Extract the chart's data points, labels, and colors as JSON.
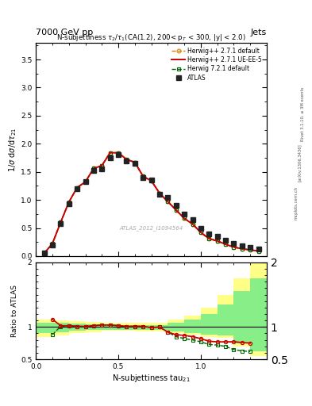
{
  "title_top": "7000 GeV pp",
  "title_right": "Jets",
  "plot_title": "N-subjettiness $\\tau_2/\\tau_1$(CA(1.2), 200< p$_{T}$ < 300, |y| < 2.0)",
  "watermark": "ATLAS_2012_I1094564",
  "ylabel_main": "1/$\\sigma$ d$\\sigma$/d$\\tau_{21}$",
  "ylabel_ratio": "Ratio to ATLAS",
  "xlabel": "N-subjettiness tau$_{21}$",
  "rivet_label": "Rivet 3.1.10, ≥ 3M events",
  "arxiv_label": "[arXiv:1306.3436]",
  "mcplots_label": "mcplots.cern.ch",
  "xlim": [
    0.0,
    1.4
  ],
  "ylim_main": [
    0.0,
    3.8
  ],
  "ylim_ratio": [
    0.5,
    2.0
  ],
  "atlas_x": [
    0.05,
    0.1,
    0.15,
    0.2,
    0.25,
    0.3,
    0.35,
    0.4,
    0.45,
    0.5,
    0.55,
    0.6,
    0.65,
    0.7,
    0.75,
    0.8,
    0.85,
    0.9,
    0.95,
    1.0,
    1.05,
    1.1,
    1.15,
    1.2,
    1.25,
    1.3,
    1.35
  ],
  "atlas_y": [
    0.05,
    0.2,
    0.58,
    0.93,
    1.2,
    1.32,
    1.52,
    1.55,
    1.75,
    1.8,
    1.7,
    1.65,
    1.4,
    1.35,
    1.1,
    1.05,
    0.9,
    0.75,
    0.65,
    0.5,
    0.4,
    0.35,
    0.28,
    0.22,
    0.18,
    0.15,
    0.12
  ],
  "hw271_x": [
    0.05,
    0.1,
    0.15,
    0.2,
    0.25,
    0.3,
    0.35,
    0.4,
    0.45,
    0.5,
    0.55,
    0.6,
    0.65,
    0.7,
    0.75,
    0.8,
    0.85,
    0.9,
    0.95,
    1.0,
    1.05,
    1.1,
    1.15,
    1.2,
    1.25,
    1.3,
    1.35
  ],
  "hw271_y": [
    0.05,
    0.22,
    0.6,
    0.96,
    1.22,
    1.32,
    1.56,
    1.61,
    1.84,
    1.84,
    1.72,
    1.67,
    1.42,
    1.34,
    1.12,
    0.97,
    0.82,
    0.67,
    0.57,
    0.42,
    0.31,
    0.27,
    0.21,
    0.16,
    0.13,
    0.11,
    0.09
  ],
  "hw271ue_x": [
    0.05,
    0.1,
    0.15,
    0.2,
    0.25,
    0.3,
    0.35,
    0.4,
    0.45,
    0.5,
    0.55,
    0.6,
    0.65,
    0.7,
    0.75,
    0.8,
    0.85,
    0.9,
    0.95,
    1.0,
    1.05,
    1.1,
    1.15,
    1.2,
    1.25,
    1.3,
    1.35
  ],
  "hw271ue_y": [
    0.05,
    0.22,
    0.6,
    0.96,
    1.22,
    1.32,
    1.56,
    1.61,
    1.84,
    1.84,
    1.72,
    1.67,
    1.42,
    1.34,
    1.12,
    0.97,
    0.82,
    0.67,
    0.57,
    0.42,
    0.31,
    0.27,
    0.21,
    0.16,
    0.13,
    0.11,
    0.09
  ],
  "hw721_x": [
    0.05,
    0.1,
    0.15,
    0.2,
    0.25,
    0.3,
    0.35,
    0.4,
    0.45,
    0.5,
    0.55,
    0.6,
    0.65,
    0.7,
    0.75,
    0.8,
    0.85,
    0.9,
    0.95,
    1.0,
    1.05,
    1.1,
    1.15,
    1.2,
    1.25,
    1.3,
    1.35
  ],
  "hw721_y": [
    0.05,
    0.22,
    0.6,
    0.96,
    1.22,
    1.32,
    1.56,
    1.61,
    1.84,
    1.84,
    1.72,
    1.67,
    1.42,
    1.34,
    1.12,
    0.97,
    0.82,
    0.67,
    0.57,
    0.42,
    0.31,
    0.27,
    0.21,
    0.16,
    0.13,
    0.11,
    0.09
  ],
  "ratio_hw271ue_x": [
    0.1,
    0.15,
    0.2,
    0.25,
    0.3,
    0.35,
    0.4,
    0.45,
    0.5,
    0.55,
    0.6,
    0.65,
    0.7,
    0.75,
    0.8,
    0.85,
    0.9,
    0.95,
    1.0,
    1.05,
    1.1,
    1.15,
    1.2,
    1.25,
    1.3
  ],
  "ratio_hw271ue_y": [
    1.12,
    1.02,
    1.02,
    1.01,
    1.01,
    1.02,
    1.03,
    1.03,
    1.02,
    1.01,
    1.01,
    1.01,
    0.99,
    1.0,
    0.92,
    0.88,
    0.87,
    0.85,
    0.82,
    0.78,
    0.77,
    0.77,
    0.77,
    0.76,
    0.75
  ],
  "ratio_hw721_x": [
    0.1,
    0.15,
    0.2,
    0.25,
    0.3,
    0.35,
    0.4,
    0.45,
    0.5,
    0.55,
    0.6,
    0.65,
    0.7,
    0.75,
    0.8,
    0.85,
    0.9,
    0.95,
    1.0,
    1.05,
    1.1,
    1.15,
    1.2,
    1.25,
    1.3
  ],
  "ratio_hw721_y": [
    0.88,
    1.01,
    1.02,
    1.01,
    1.01,
    1.02,
    1.03,
    1.03,
    1.02,
    1.01,
    1.01,
    1.01,
    0.99,
    1.0,
    0.92,
    0.85,
    0.82,
    0.8,
    0.77,
    0.73,
    0.72,
    0.7,
    0.65,
    0.63,
    0.62
  ],
  "yellow_band_edges": [
    0.0,
    0.1,
    0.2,
    0.3,
    0.4,
    0.5,
    0.6,
    0.7,
    0.8,
    0.9,
    1.0,
    1.1,
    1.2,
    1.3,
    1.4
  ],
  "yellow_band_lo": [
    0.85,
    0.87,
    0.9,
    0.92,
    0.94,
    0.94,
    0.93,
    0.93,
    0.9,
    0.88,
    0.85,
    0.83,
    0.7,
    0.55,
    0.5
  ],
  "yellow_band_hi": [
    1.12,
    1.1,
    1.09,
    1.08,
    1.07,
    1.07,
    1.07,
    1.07,
    1.12,
    1.18,
    1.3,
    1.5,
    1.75,
    2.0,
    2.0
  ],
  "green_band_edges": [
    0.0,
    0.1,
    0.2,
    0.3,
    0.4,
    0.5,
    0.6,
    0.7,
    0.8,
    0.9,
    1.0,
    1.1,
    1.2,
    1.3,
    1.4
  ],
  "green_band_lo": [
    0.9,
    0.92,
    0.94,
    0.95,
    0.96,
    0.96,
    0.96,
    0.96,
    0.93,
    0.91,
    0.88,
    0.87,
    0.75,
    0.62,
    0.58
  ],
  "green_band_hi": [
    1.07,
    1.06,
    1.05,
    1.04,
    1.04,
    1.03,
    1.03,
    1.03,
    1.07,
    1.12,
    1.2,
    1.35,
    1.55,
    1.75,
    1.8
  ],
  "color_atlas": "#222222",
  "color_hw271": "#e08000",
  "color_hw271ue": "#cc0000",
  "color_hw721": "#006600",
  "color_yellow": "#ffff88",
  "color_green": "#88ee88",
  "bg_color": "#ffffff"
}
